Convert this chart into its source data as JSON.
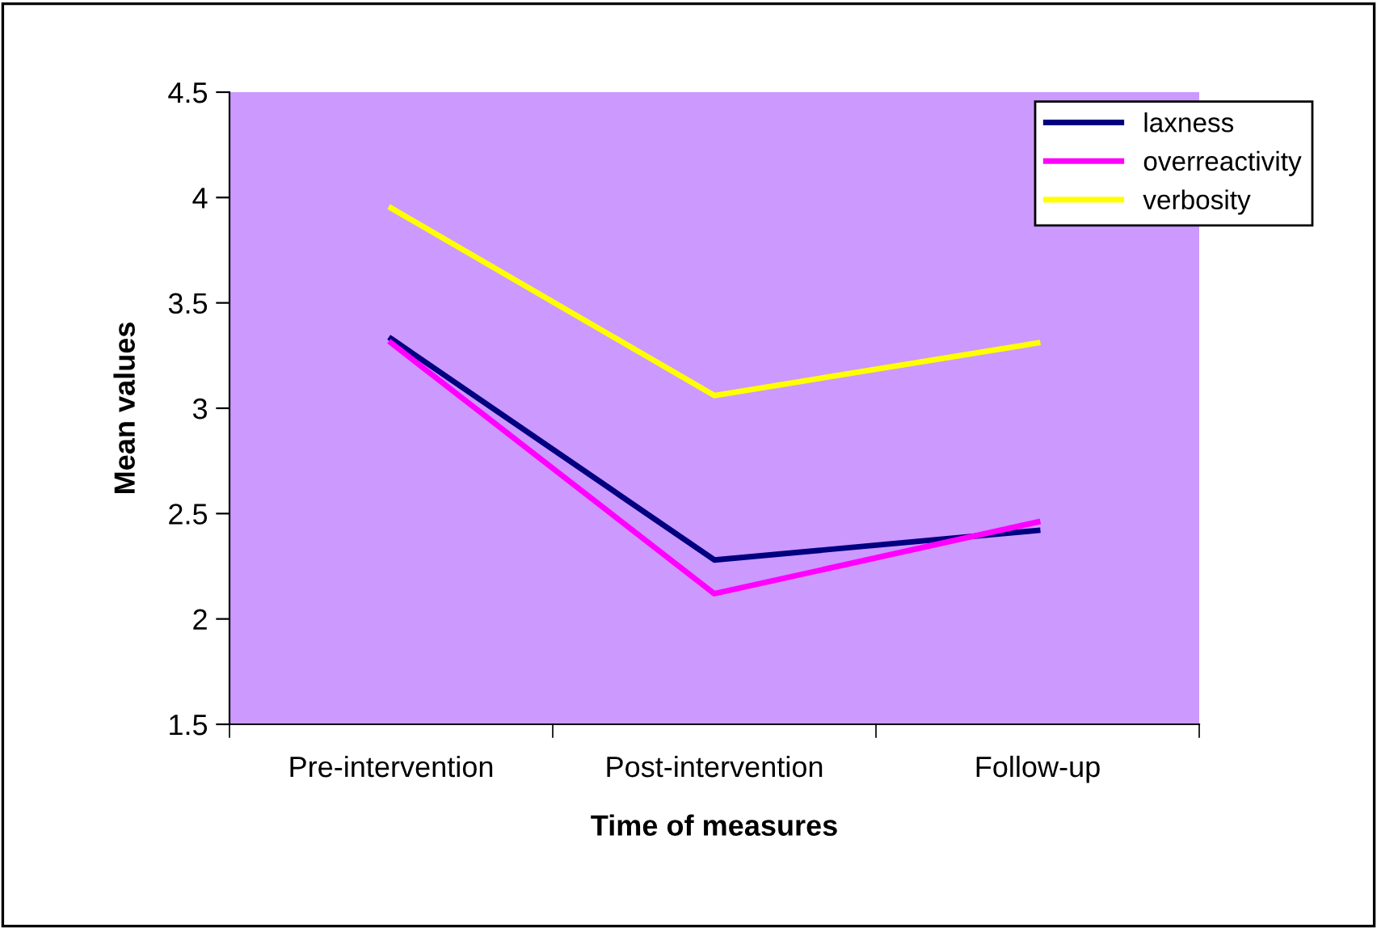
{
  "chart_data": {
    "type": "line",
    "xlabel": "Time of measures",
    "ylabel": "Mean values",
    "categories": [
      "Pre-intervention",
      "Post-intervention",
      "Follow-up"
    ],
    "series": [
      {
        "name": "laxness",
        "color": "#000080",
        "values": [
          3.33,
          2.28,
          2.42
        ]
      },
      {
        "name": "overreactivity",
        "color": "#ff00ff",
        "values": [
          3.31,
          2.12,
          2.46
        ]
      },
      {
        "name": "verbosity",
        "color": "#ffff00",
        "values": [
          3.95,
          3.06,
          3.31
        ]
      }
    ],
    "ylim": [
      1.5,
      4.5
    ],
    "yticks": [
      1.5,
      2,
      2.5,
      3,
      3.5,
      4,
      4.5
    ],
    "grid": false,
    "legend": "top right",
    "marker": "none",
    "line_style": "solid"
  }
}
